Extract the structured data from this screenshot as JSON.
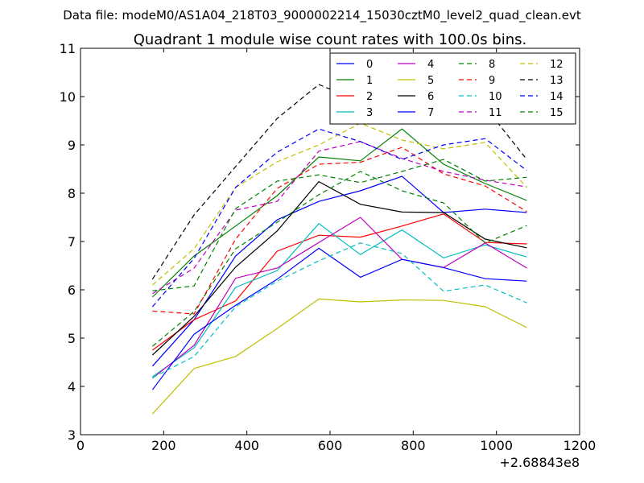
{
  "figure_suptitle": "Data file: modeM0/AS1A04_218T03_9000002214_15030cztM0_level2_quad_clean.evt",
  "chart_data": {
    "type": "line",
    "title": "Quadrant 1 module wise count rates with 100.0s bins.",
    "xlabel": "",
    "ylabel": "",
    "x_offset_label": "+2.68843e8",
    "xlim": [
      0,
      1200
    ],
    "ylim": [
      3,
      11
    ],
    "xticks": [
      0,
      200,
      400,
      600,
      800,
      1000,
      1200
    ],
    "yticks": [
      3,
      4,
      5,
      6,
      7,
      8,
      9,
      10,
      11
    ],
    "xtick_labels": [
      "0",
      "200",
      "400",
      "600",
      "800",
      "1000",
      "1200"
    ],
    "ytick_labels": [
      "3",
      "4",
      "5",
      "6",
      "7",
      "8",
      "9",
      "10",
      "11"
    ],
    "grid": false,
    "legend_position": "top-right",
    "legend_columns": 4,
    "x": [
      173,
      273,
      373,
      473,
      573,
      673,
      773,
      873,
      973,
      1073
    ],
    "series": [
      {
        "name": "0",
        "color": "#0000ff",
        "dash": false,
        "values": [
          4.42,
          5.38,
          6.7,
          7.45,
          7.83,
          8.05,
          8.35,
          7.6,
          7.67,
          7.6
        ]
      },
      {
        "name": "1",
        "color": "#008000",
        "dash": false,
        "values": [
          5.85,
          6.7,
          7.32,
          7.95,
          8.75,
          8.67,
          9.33,
          8.6,
          8.2,
          7.85
        ]
      },
      {
        "name": "2",
        "color": "#ff0000",
        "dash": false,
        "values": [
          4.75,
          5.38,
          5.77,
          6.8,
          7.13,
          7.09,
          7.32,
          7.57,
          6.98,
          6.95
        ]
      },
      {
        "name": "3",
        "color": "#00bfbf",
        "dash": false,
        "values": [
          4.2,
          4.8,
          6.05,
          6.4,
          7.37,
          6.73,
          7.24,
          6.66,
          6.93,
          6.68
        ]
      },
      {
        "name": "4",
        "color": "#bf00bf",
        "dash": false,
        "values": [
          4.17,
          4.85,
          6.24,
          6.45,
          6.98,
          7.5,
          6.63,
          6.46,
          6.97,
          6.45
        ]
      },
      {
        "name": "5",
        "color": "#bfbf00",
        "dash": false,
        "values": [
          3.43,
          4.37,
          4.62,
          5.2,
          5.81,
          5.75,
          5.79,
          5.78,
          5.65,
          5.22
        ]
      },
      {
        "name": "6",
        "color": "#000000",
        "dash": false,
        "values": [
          4.65,
          5.45,
          6.47,
          7.22,
          8.24,
          7.77,
          7.61,
          7.6,
          7.05,
          6.87
        ]
      },
      {
        "name": "7",
        "color": "#0000ff",
        "dash": false,
        "values": [
          3.93,
          5.08,
          5.68,
          6.22,
          6.86,
          6.26,
          6.63,
          6.46,
          6.23,
          6.18
        ]
      },
      {
        "name": "8",
        "color": "#008000",
        "dash": true,
        "values": [
          4.83,
          5.55,
          6.85,
          7.4,
          7.97,
          8.45,
          8.05,
          7.8,
          6.97,
          7.33
        ]
      },
      {
        "name": "9",
        "color": "#ff0000",
        "dash": true,
        "values": [
          5.56,
          5.5,
          7.05,
          8.1,
          8.6,
          8.64,
          8.95,
          8.4,
          8.15,
          7.62
        ]
      },
      {
        "name": "10",
        "color": "#00bfbf",
        "dash": true,
        "values": [
          4.18,
          4.62,
          5.65,
          6.18,
          6.6,
          6.97,
          6.75,
          5.97,
          6.1,
          5.73
        ]
      },
      {
        "name": "11",
        "color": "#bf00bf",
        "dash": true,
        "values": [
          5.92,
          6.45,
          7.65,
          7.83,
          8.87,
          9.07,
          8.72,
          8.45,
          8.27,
          8.13
        ]
      },
      {
        "name": "12",
        "color": "#bfbf00",
        "dash": true,
        "values": [
          6.1,
          6.85,
          8.12,
          8.65,
          9.0,
          9.45,
          9.1,
          8.92,
          9.05,
          8.12
        ]
      },
      {
        "name": "13",
        "color": "#000000",
        "dash": true,
        "values": [
          6.22,
          7.55,
          8.55,
          9.55,
          10.25,
          9.9,
          10.05,
          9.68,
          9.78,
          8.7
        ]
      },
      {
        "name": "14",
        "color": "#0000ff",
        "dash": true,
        "values": [
          5.65,
          6.65,
          8.12,
          8.85,
          9.33,
          9.07,
          8.7,
          9.0,
          9.13,
          8.47
        ]
      },
      {
        "name": "15",
        "color": "#008000",
        "dash": true,
        "values": [
          5.98,
          6.08,
          7.68,
          8.25,
          8.38,
          8.22,
          8.45,
          8.7,
          8.25,
          8.33
        ]
      }
    ]
  }
}
